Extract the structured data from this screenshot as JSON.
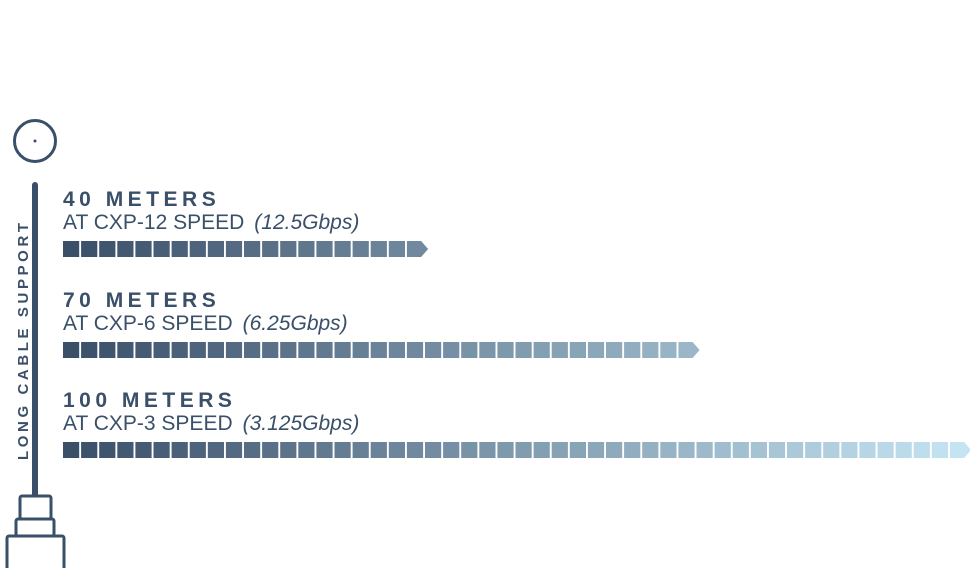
{
  "side_label": "LONG CABLE SUPPORT",
  "colors": {
    "dark": "#3a4f68",
    "light": "#c5e4f3"
  },
  "icons": [
    "cable-connector-icon",
    "cable-end-circle-icon"
  ],
  "groups": [
    {
      "title": "40 METERS",
      "speed": "AT CXP-12 SPEED",
      "rate": "(12.5Gbps)",
      "meters": 40
    },
    {
      "title": "70 METERS",
      "speed": "AT CXP-6 SPEED",
      "rate": "(6.25Gbps)",
      "meters": 70
    },
    {
      "title": "100 METERS",
      "speed": "AT CXP-3 SPEED",
      "rate": "(3.125Gbps)",
      "meters": 100
    }
  ]
}
